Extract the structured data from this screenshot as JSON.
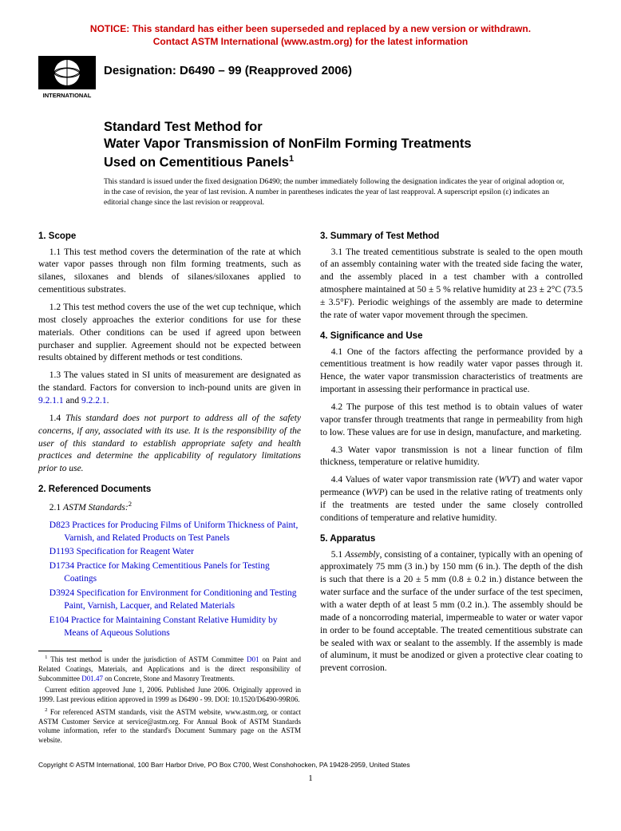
{
  "notice": {
    "color": "#cc0000",
    "line1": "NOTICE: This standard has either been superseded and replaced by a new version or withdrawn.",
    "line2": "Contact ASTM International (www.astm.org) for the latest information"
  },
  "logo": {
    "bg_color": "#000000",
    "fg_color": "#ffffff",
    "top_text": "ASTM",
    "bottom_text": "INTERNATIONAL"
  },
  "designation": "Designation: D6490 – 99 (Reapproved 2006)",
  "title": {
    "line1": "Standard Test Method for",
    "line2": "Water Vapor Transmission of NonFilm Forming Treatments",
    "line3": "Used on Cementitious Panels",
    "superscript": "1"
  },
  "issuance": "This standard is issued under the fixed designation D6490; the number immediately following the designation indicates the year of original adoption or, in the case of revision, the year of last revision. A number in parentheses indicates the year of last reapproval. A superscript epsilon (ε) indicates an editorial change since the last revision or reapproval.",
  "link_color": "#0000cc",
  "left": {
    "s1": {
      "head": "1. Scope",
      "p1": {
        "n": "1.1",
        "t": "This test method covers the determination of the rate at which water vapor passes through non film forming treatments, such as silanes, siloxanes and blends of silanes/siloxanes applied to cementitious substrates."
      },
      "p2": {
        "n": "1.2",
        "t": "This test method covers the use of the wet cup technique, which most closely approaches the exterior conditions for use for these materials. Other conditions can be used if agreed upon between purchaser and supplier. Agreement should not be expected between results obtained by different methods or test conditions."
      },
      "p3": {
        "n": "1.3",
        "t_a": "The values stated in SI units of measurement are designated as the standard. Factors for conversion to inch-pound units are given in ",
        "l1": "9.2.1.1",
        "t_b": " and ",
        "l2": "9.2.2.1",
        "t_c": "."
      },
      "p4": {
        "n": "1.4",
        "t": "This standard does not purport to address all of the safety concerns, if any, associated with its use. It is the responsibility of the user of this standard to establish appropriate safety and health practices and determine the applicability of regulatory limitations prior to use."
      }
    },
    "s2": {
      "head": "2. Referenced Documents",
      "p1": {
        "n": "2.1",
        "label": "ASTM Standards:",
        "sup": "2"
      },
      "refs": [
        {
          "code": "D823",
          "title": "Practices for Producing Films of Uniform Thickness of Paint, Varnish, and Related Products on Test Panels"
        },
        {
          "code": "D1193",
          "title": "Specification for Reagent Water"
        },
        {
          "code": "D1734",
          "title": "Practice for Making Cementitious Panels for Testing Coatings"
        },
        {
          "code": "D3924",
          "title": "Specification for Environment for Conditioning and Testing Paint, Varnish, Lacquer, and Related Materials"
        },
        {
          "code": "E104",
          "title": "Practice for Maintaining Constant Relative Humidity by Means of Aqueous Solutions"
        }
      ]
    },
    "fn1": {
      "sup": "1",
      "t_a": "This test method is under the jurisdiction of ASTM Committee ",
      "l1": "D01",
      "t_b": " on Paint and Related Coatings, Materials, and Applications and is the direct responsibility of Subcommittee ",
      "l2": "D01.47",
      "t_c": " on Concrete, Stone and Masonry Treatments."
    },
    "fn1b": "Current edition approved June 1, 2006. Published June 2006. Originally approved in 1999. Last previous edition approved in 1999 as D6490 - 99. DOI: 10.1520/D6490-99R06.",
    "fn2": {
      "sup": "2",
      "t": "For referenced ASTM standards, visit the ASTM website, www.astm.org, or contact ASTM Customer Service at service@astm.org. For Annual Book of ASTM Standards volume information, refer to the standard's Document Summary page on the ASTM website."
    }
  },
  "right": {
    "s3": {
      "head": "3. Summary of Test Method",
      "p1": {
        "n": "3.1",
        "t": "The treated cementitious substrate is sealed to the open mouth of an assembly containing water with the treated side facing the water, and the assembly placed in a test chamber with a controlled atmosphere maintained at 50 ± 5 % relative humidity at 23 ± 2°C (73.5 ± 3.5°F). Periodic weighings of the assembly are made to determine the rate of water vapor movement through the specimen."
      }
    },
    "s4": {
      "head": "4. Significance and Use",
      "p1": {
        "n": "4.1",
        "t": "One of the factors affecting the performance provided by a cementitious treatment is how readily water vapor passes through it. Hence, the water vapor transmission characteristics of treatments are important in assessing their performance in practical use."
      },
      "p2": {
        "n": "4.2",
        "t": "The purpose of this test method is to obtain values of water vapor transfer through treatments that range in permeability from high to low. These values are for use in design, manufacture, and marketing."
      },
      "p3": {
        "n": "4.3",
        "t": "Water vapor transmission is not a linear function of film thickness, temperature or relative humidity."
      },
      "p4": {
        "n": "4.4",
        "t_a": "Values of water vapor transmission rate (",
        "i1": "WVT",
        "t_b": ") and water vapor permeance (",
        "i2": "WVP",
        "t_c": ") can be used in the relative rating of treatments only if the treatments are tested under the same closely controlled conditions of temperature and relative humidity."
      }
    },
    "s5": {
      "head": "5. Apparatus",
      "p1": {
        "n": "5.1",
        "label": "Assembly",
        "t": ", consisting of a container, typically with an opening of approximately 75 mm (3 in.) by 150 mm (6 in.). The depth of the dish is such that there is a 20 ± 5 mm (0.8 ± 0.2 in.) distance between the water surface and the surface of the under surface of the test specimen, with a water depth of at least 5 mm (0.2 in.). The assembly should be made of a noncorroding material, impermeable to water or water vapor in order to be found acceptable. The treated cementitious substrate can be sealed with wax or sealant to the assembly. If the assembly is made of aluminum, it must be anodized or given a protective clear coating to prevent corrosion."
      }
    }
  },
  "copyright": "Copyright © ASTM International, 100 Barr Harbor Drive, PO Box C700, West Conshohocken, PA 19428-2959, United States",
  "page_number": "1"
}
